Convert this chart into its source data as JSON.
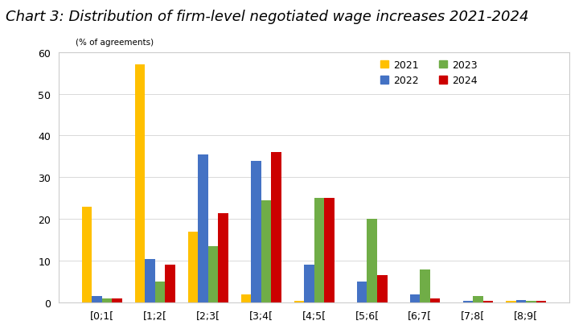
{
  "title": "Chart 3: Distribution of firm-level negotiated wage increases 2021-2024",
  "ylabel": "(% of agreements)",
  "categories": [
    "[0;1[",
    "[1;2[",
    "[2;3[",
    "[3;4[",
    "[4;5[",
    "[5;6[",
    "[6;7[",
    "[7;8[",
    "[8;9["
  ],
  "series": {
    "2021": [
      23,
      57,
      17,
      2,
      0.5,
      0,
      0,
      0,
      0.5
    ],
    "2022": [
      1.5,
      10.5,
      35.5,
      34,
      9,
      5,
      2,
      0.5,
      0.7
    ],
    "2023": [
      1,
      5,
      13.5,
      24.5,
      25,
      20,
      8,
      1.5,
      0.5
    ],
    "2024": [
      1,
      9,
      21.5,
      36,
      25,
      6.5,
      1,
      0.5,
      0.5
    ]
  },
  "colors": {
    "2021": "#FFC000",
    "2022": "#4472C4",
    "2023": "#70AD47",
    "2024": "#CC0000"
  },
  "ylim": [
    0,
    60
  ],
  "yticks": [
    0,
    10,
    20,
    30,
    40,
    50,
    60
  ],
  "title_fontsize": 13,
  "axis_fontsize": 9,
  "legend_fontsize": 9,
  "bar_width": 0.19
}
